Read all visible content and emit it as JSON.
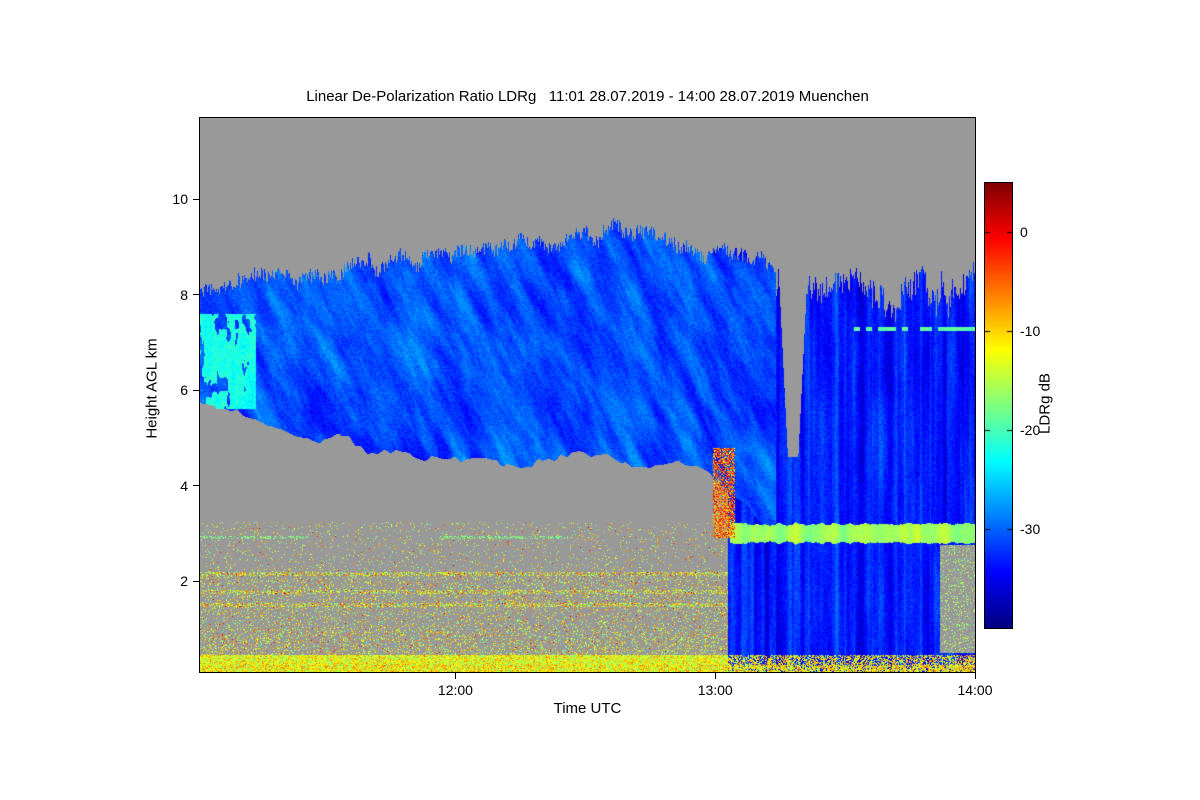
{
  "chart_data": {
    "type": "heatmap",
    "title": "Linear De-Polarization Ratio LDRg   11:01 28.07.2019 - 14:00 28.07.2019 Muenchen",
    "xlabel": "Time UTC",
    "ylabel": "Height AGL km",
    "x_axis": {
      "start_label": "11:01",
      "end_label": "14:00",
      "range_minutes": [
        0,
        179
      ],
      "ticks": [
        {
          "minute": 59,
          "label": "12:00"
        },
        {
          "minute": 119,
          "label": "13:00"
        },
        {
          "minute": 179,
          "label": "14:00"
        }
      ]
    },
    "y_axis": {
      "range_km": [
        0.1,
        11.7
      ],
      "ticks": [
        {
          "km": 2,
          "label": "2"
        },
        {
          "km": 4,
          "label": "4"
        },
        {
          "km": 6,
          "label": "6"
        },
        {
          "km": 8,
          "label": "8"
        },
        {
          "km": 10,
          "label": "10"
        }
      ]
    },
    "colorbar": {
      "label": "LDRg dB",
      "min_db": -40,
      "max_db": 5,
      "colormap": "jet",
      "ticks": [
        {
          "db": 0,
          "label": "0"
        },
        {
          "db": -10,
          "label": "-10"
        },
        {
          "db": -20,
          "label": "-20"
        },
        {
          "db": -30,
          "label": "-30"
        }
      ]
    },
    "no_data_color": "#999999",
    "features": {
      "ice_cloud": {
        "t_minutes": [
          0,
          133
        ],
        "top_km": [
          [
            0,
            8.0
          ],
          [
            20,
            8.35
          ],
          [
            40,
            8.7
          ],
          [
            60,
            8.9
          ],
          [
            80,
            9.15
          ],
          [
            92,
            9.5
          ],
          [
            100,
            9.4
          ],
          [
            110,
            9.2
          ],
          [
            122,
            9.0
          ],
          [
            133,
            8.6
          ]
        ],
        "base_km": [
          [
            0,
            5.9
          ],
          [
            10,
            5.6
          ],
          [
            25,
            5.05
          ],
          [
            40,
            4.75
          ],
          [
            55,
            4.6
          ],
          [
            75,
            4.5
          ],
          [
            95,
            4.5
          ],
          [
            110,
            4.45
          ],
          [
            118,
            4.3
          ],
          [
            126,
            3.6
          ],
          [
            133,
            2.8
          ]
        ],
        "ldr_db_mean": -31,
        "ldr_db_spread": 9,
        "left_edge_cirrus": {
          "t_max": 13,
          "h_km": [
            5.6,
            7.6
          ],
          "ldr_db": -21
        }
      },
      "precipitation": {
        "t_minutes": [
          122,
          179
        ],
        "top_km": [
          [
            122,
            8.8
          ],
          [
            128,
            8.5
          ],
          [
            134,
            8.3
          ],
          [
            142,
            8.1
          ],
          [
            150,
            8.35
          ],
          [
            158,
            7.9
          ],
          [
            166,
            8.2
          ],
          [
            172,
            8.0
          ],
          [
            179,
            8.35
          ]
        ],
        "ldr_db_mean": -33,
        "streak_db_amplitude": 5,
        "echo_free_notch": {
          "t_center": 137,
          "half_width_min": 1.2,
          "flare_per_km": 0.55,
          "bottom_km": 4.6
        }
      },
      "melting_layer": {
        "t_start_min": 122.5,
        "height_km": 3.0,
        "half_thickness_km": 0.18,
        "ldr_db_mean": -16,
        "ldr_db_spread": 7
      },
      "boundary_layer": {
        "t_minutes": [
          0,
          122
        ],
        "top_km": 3.25,
        "speckle_db_min": -20,
        "speckle_db_max": -5,
        "bright_lines_km": [
          1.78,
          1.5,
          2.15
        ],
        "cyan_line_km": 2.92
      },
      "surface_layer": {
        "top_km": 0.45,
        "db_min": -18,
        "db_max": -5
      },
      "rain_onset_column": {
        "t_minutes": [
          118.5,
          123.5
        ],
        "h_km": [
          2.9,
          4.8
        ],
        "db_min": -12,
        "db_max": 1
      },
      "right_gap_patch": {
        "t_min": 171,
        "h_km": [
          0.5,
          2.75
        ]
      },
      "cirrus_streak_right": {
        "t_min": 151,
        "height_km": 7.28,
        "half_thickness_km": 0.05,
        "ldr_db": -19
      }
    }
  }
}
